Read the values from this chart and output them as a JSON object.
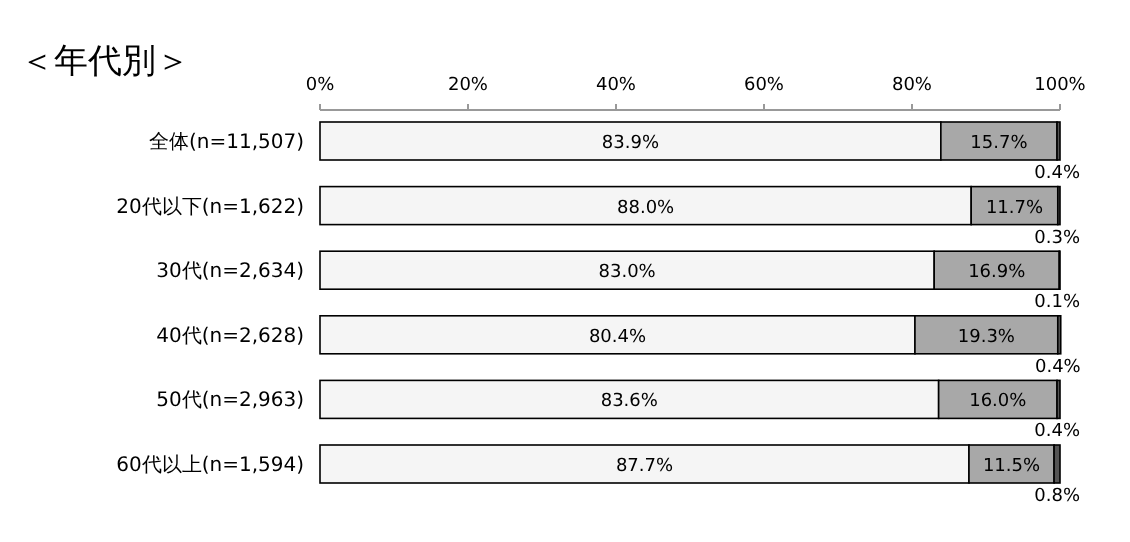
{
  "chart_data": {
    "type": "bar",
    "orientation": "horizontal",
    "stacked": true,
    "title": "＜年代別＞",
    "categories": [
      "全体(n=11,507)",
      "20代以下(n=1,622)",
      "30代(n=2,634)",
      "40代(n=2,628)",
      "50代(n=2,963)",
      "60代以上(n=1,594)"
    ],
    "series": [
      {
        "color": "#f5f5f5",
        "values": [
          83.9,
          88.0,
          83.0,
          80.4,
          83.6,
          87.7
        ],
        "value_labels": [
          "83.9%",
          "88.0%",
          "83.0%",
          "80.4%",
          "83.6%",
          "87.7%"
        ]
      },
      {
        "color": "#a8a8a8",
        "values": [
          15.7,
          11.7,
          16.9,
          19.3,
          16.0,
          11.5
        ],
        "value_labels": [
          "15.7%",
          "11.7%",
          "16.9%",
          "19.3%",
          "16.0%",
          "11.5%"
        ]
      },
      {
        "color": "#555555",
        "values": [
          0.4,
          0.3,
          0.1,
          0.4,
          0.4,
          0.8
        ],
        "value_labels": [
          "0.4%",
          "0.3%",
          "0.1%",
          "0.4%",
          "0.4%",
          "0.8%"
        ]
      }
    ],
    "xlim": [
      0,
      100
    ],
    "xticks": [
      {
        "value": 0,
        "label": "0%"
      },
      {
        "value": 20,
        "label": "20%"
      },
      {
        "value": 40,
        "label": "40%"
      },
      {
        "value": 60,
        "label": "60%"
      },
      {
        "value": 80,
        "label": "80%"
      },
      {
        "value": 100,
        "label": "100%"
      }
    ],
    "grid": false
  }
}
